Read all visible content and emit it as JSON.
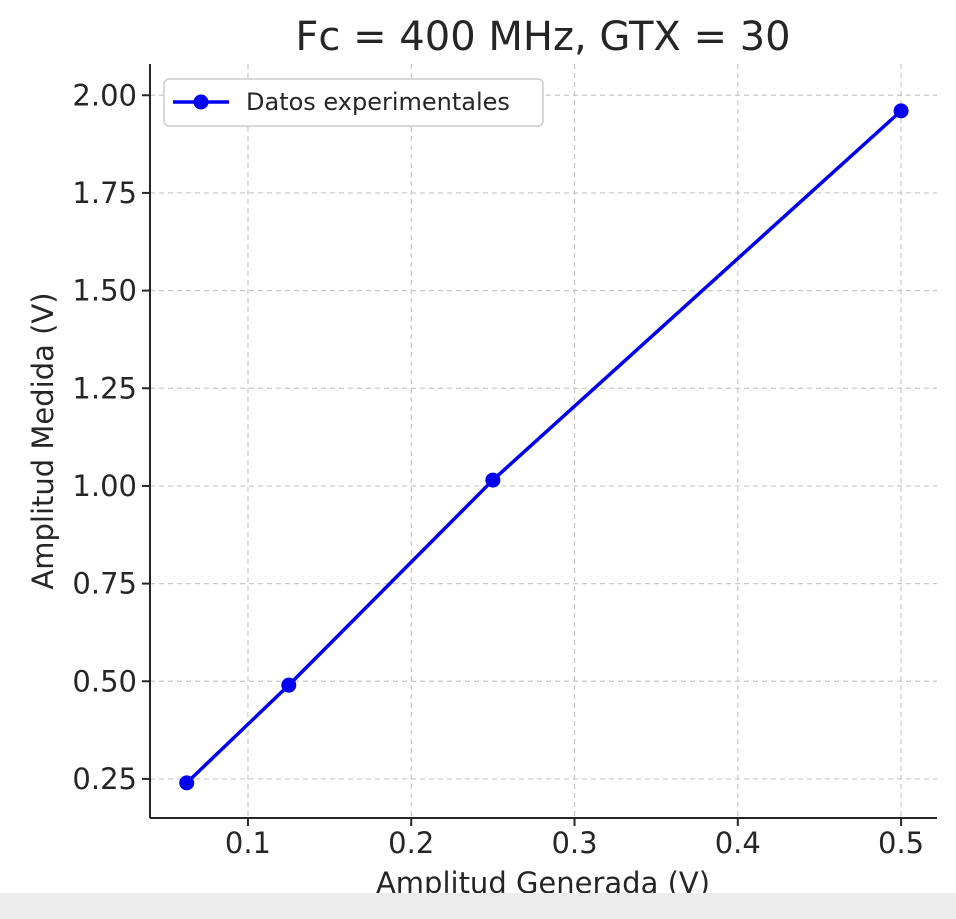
{
  "chart_data": {
    "type": "line",
    "title": "Fc = 400 MHz, GTX = 30",
    "xlabel": "Amplitud Generada (V)",
    "ylabel": "Amplitud Medida (V)",
    "xlim": [
      0.04,
      0.522
    ],
    "ylim": [
      0.15,
      2.08
    ],
    "x_ticks": [
      0.1,
      0.2,
      0.3,
      0.4,
      0.5
    ],
    "x_tick_labels": [
      "0.1",
      "0.2",
      "0.3",
      "0.4",
      "0.5"
    ],
    "y_ticks": [
      0.25,
      0.5,
      0.75,
      1.0,
      1.25,
      1.5,
      1.75,
      2.0
    ],
    "y_tick_labels": [
      "0.25",
      "0.50",
      "0.75",
      "1.00",
      "1.25",
      "1.50",
      "1.75",
      "2.00"
    ],
    "grid": true,
    "legend_position": "top-left",
    "series": [
      {
        "name": "Datos experimentales",
        "color": "#0000ee",
        "marker": "circle",
        "x": [
          0.0625,
          0.125,
          0.25,
          0.5
        ],
        "y": [
          0.24,
          0.49,
          1.015,
          1.96
        ]
      }
    ]
  }
}
